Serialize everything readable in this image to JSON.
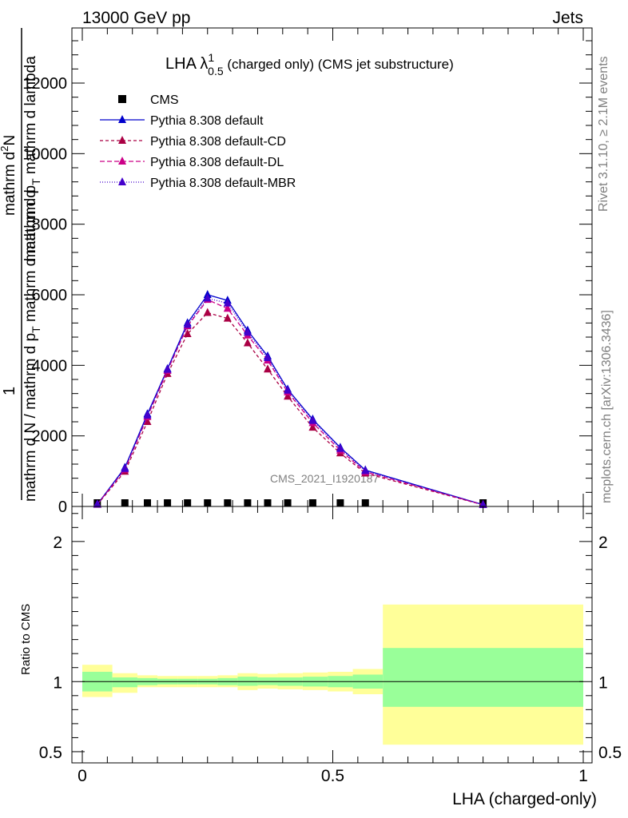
{
  "header": {
    "left": "13000 GeV pp",
    "right": "Jets"
  },
  "side_labels": {
    "rivet": "Rivet 3.1.10, ≥ 2.1M events",
    "mcplots": "mcplots.cern.ch [arXiv:1306.3436]"
  },
  "chart_data": [
    {
      "type": "line",
      "title": "LHA λ",
      "title_sup": "1",
      "title_sub": "0.5",
      "title_rest": " (charged only) (CMS jet substructure)",
      "ylabel_numerator": "1",
      "ylabel_mid": "mathrm d N / mathrm d p",
      "ylabel_sub": "T",
      "ylabel_rest": " mathrm d mathrm d",
      "ylabel_top": "mathrm d",
      "ylabel_top_sup": "2",
      "ylabel_top_rest": "N",
      "ylabel_right": "mathrm d p",
      "ylabel_right_sub": "T",
      "ylabel_right_rest": " mathrm d lambda",
      "analysis_id": "CMS_2021_I1920187",
      "xlim": [
        0,
        1
      ],
      "ylim": [
        0,
        13500
      ],
      "yticks": [
        0,
        2000,
        4000,
        6000,
        8000,
        10000,
        12000
      ],
      "ytick_labels": [
        "0",
        "2000",
        "4000",
        "6000",
        "8000",
        "10000",
        "12000"
      ],
      "legend_position": "top-left",
      "x": [
        0.03,
        0.085,
        0.13,
        0.17,
        0.21,
        0.25,
        0.29,
        0.33,
        0.37,
        0.41,
        0.46,
        0.515,
        0.565,
        0.8
      ],
      "series": [
        {
          "name": "CMS",
          "color": "#000000",
          "marker": "square",
          "values": [
            0,
            0,
            0,
            0,
            0,
            0,
            0,
            0,
            0,
            0,
            0,
            0,
            0,
            0
          ]
        },
        {
          "name": "Pythia 8.308 default",
          "color": "#0000cc",
          "marker": "triangle",
          "dash": "solid",
          "values": [
            60,
            1100,
            2620,
            3900,
            5200,
            6000,
            5840,
            4990,
            4260,
            3320,
            2470,
            1670,
            1030,
            50
          ]
        },
        {
          "name": "Pythia 8.308 default-CD",
          "color": "#aa0044",
          "marker": "triangle",
          "dash": "4,3",
          "values": [
            55,
            990,
            2400,
            3760,
            4890,
            5490,
            5330,
            4630,
            3890,
            3120,
            2240,
            1510,
            940,
            45
          ]
        },
        {
          "name": "Pythia 8.308 default-DL",
          "color": "#cc0088",
          "marker": "triangle",
          "dash": "6,3",
          "values": [
            58,
            1050,
            2540,
            3850,
            5110,
            5860,
            5610,
            4850,
            4140,
            3240,
            2370,
            1590,
            980,
            48
          ]
        },
        {
          "name": "Pythia 8.308 default-MBR",
          "color": "#4400cc",
          "marker": "triangle",
          "dash": "1,2",
          "values": [
            59,
            1070,
            2580,
            3880,
            5150,
            5900,
            5760,
            4930,
            4210,
            3290,
            2430,
            1640,
            1010,
            49
          ]
        }
      ]
    },
    {
      "type": "area",
      "ylabel": "Ratio to CMS",
      "xlabel": "LHA (charged-only)",
      "xlim": [
        0,
        1
      ],
      "ylim": [
        0.42,
        2.25
      ],
      "xticks": [
        0,
        0.5,
        1
      ],
      "xtick_labels": [
        "0",
        "0.5",
        "1"
      ],
      "yticks": [
        0.5,
        1,
        2
      ],
      "ytick_labels": [
        "0.5",
        "1",
        "2"
      ],
      "band_colors": {
        "inner": "#99ff99",
        "outer": "#ffff99"
      },
      "bins": [
        {
          "lo": 0.0,
          "hi": 0.06,
          "in_lo": 0.93,
          "in_hi": 1.07,
          "out_lo": 0.89,
          "out_hi": 1.12
        },
        {
          "lo": 0.06,
          "hi": 0.11,
          "in_lo": 0.96,
          "in_hi": 1.03,
          "out_lo": 0.92,
          "out_hi": 1.06
        },
        {
          "lo": 0.11,
          "hi": 0.15,
          "in_lo": 0.975,
          "in_hi": 1.025,
          "out_lo": 0.96,
          "out_hi": 1.045
        },
        {
          "lo": 0.15,
          "hi": 0.19,
          "in_lo": 0.98,
          "in_hi": 1.02,
          "out_lo": 0.96,
          "out_hi": 1.04
        },
        {
          "lo": 0.19,
          "hi": 0.23,
          "in_lo": 0.98,
          "in_hi": 1.02,
          "out_lo": 0.96,
          "out_hi": 1.04
        },
        {
          "lo": 0.23,
          "hi": 0.27,
          "in_lo": 0.98,
          "in_hi": 1.02,
          "out_lo": 0.96,
          "out_hi": 1.04
        },
        {
          "lo": 0.27,
          "hi": 0.31,
          "in_lo": 0.975,
          "in_hi": 1.025,
          "out_lo": 0.96,
          "out_hi": 1.045
        },
        {
          "lo": 0.31,
          "hi": 0.35,
          "in_lo": 0.97,
          "in_hi": 1.035,
          "out_lo": 0.94,
          "out_hi": 1.06
        },
        {
          "lo": 0.35,
          "hi": 0.39,
          "in_lo": 0.975,
          "in_hi": 1.03,
          "out_lo": 0.95,
          "out_hi": 1.055
        },
        {
          "lo": 0.39,
          "hi": 0.44,
          "in_lo": 0.97,
          "in_hi": 1.03,
          "out_lo": 0.945,
          "out_hi": 1.06
        },
        {
          "lo": 0.44,
          "hi": 0.49,
          "in_lo": 0.965,
          "in_hi": 1.035,
          "out_lo": 0.94,
          "out_hi": 1.065
        },
        {
          "lo": 0.49,
          "hi": 0.54,
          "in_lo": 0.96,
          "in_hi": 1.04,
          "out_lo": 0.93,
          "out_hi": 1.07
        },
        {
          "lo": 0.54,
          "hi": 0.6,
          "in_lo": 0.95,
          "in_hi": 1.05,
          "out_lo": 0.91,
          "out_hi": 1.09
        },
        {
          "lo": 0.6,
          "hi": 1.0,
          "in_lo": 0.82,
          "in_hi": 1.24,
          "out_lo": 0.55,
          "out_hi": 1.55
        }
      ],
      "ratio_line": 1
    }
  ]
}
